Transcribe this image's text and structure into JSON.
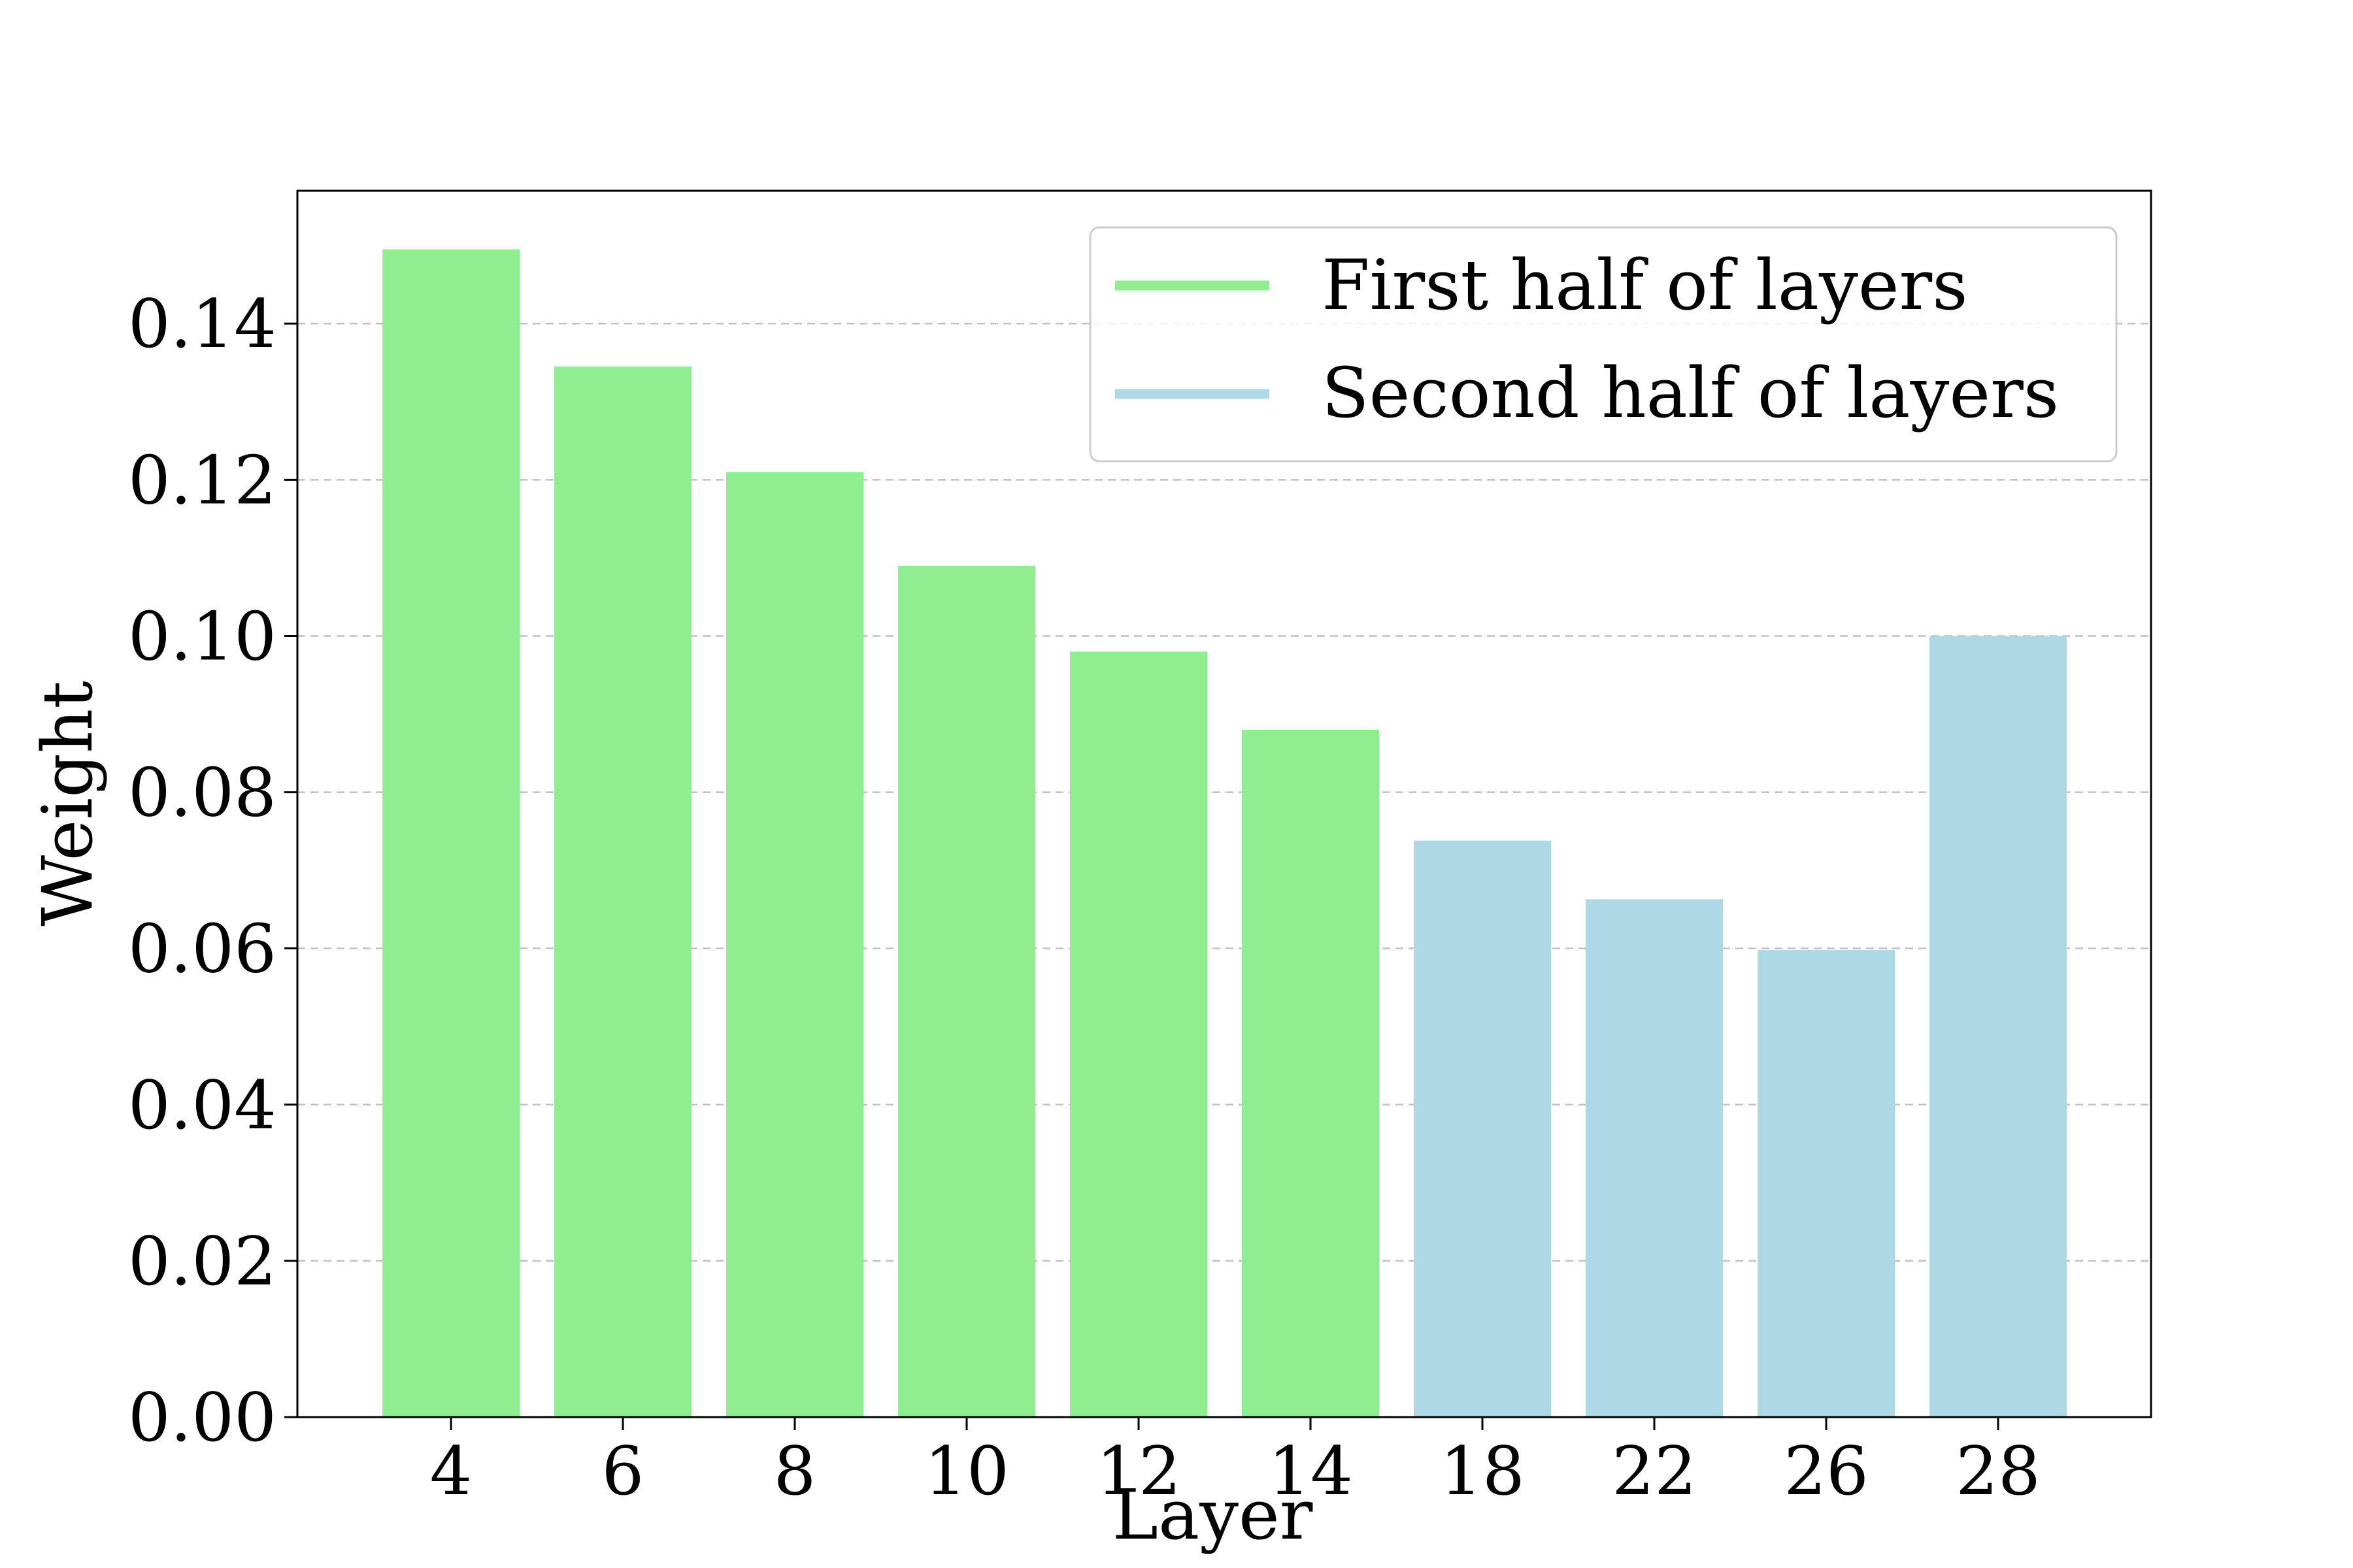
{
  "chart_data": {
    "type": "bar",
    "categories": [
      "4",
      "6",
      "8",
      "10",
      "12",
      "14",
      "18",
      "22",
      "26",
      "28"
    ],
    "values": [
      0.1495,
      0.1345,
      0.121,
      0.109,
      0.098,
      0.088,
      0.0738,
      0.0663,
      0.0598,
      0.1
    ],
    "bar_groups": [
      0,
      0,
      0,
      0,
      0,
      0,
      1,
      1,
      1,
      1
    ],
    "series": [
      {
        "name": "First half of layers",
        "color": "#90EE90"
      },
      {
        "name": "Second half of layers",
        "color": "#ADD8E6"
      }
    ],
    "xlabel": "Layer",
    "ylabel": "Weight",
    "ylim": [
      0,
      0.157
    ],
    "yticks": [
      "0.00",
      "0.02",
      "0.04",
      "0.06",
      "0.08",
      "0.10",
      "0.12",
      "0.14"
    ],
    "ytick_values": [
      0,
      0.02,
      0.04,
      0.06,
      0.08,
      0.1,
      0.12,
      0.14
    ],
    "grid": "y-dashed",
    "legend_position": "top-right"
  }
}
